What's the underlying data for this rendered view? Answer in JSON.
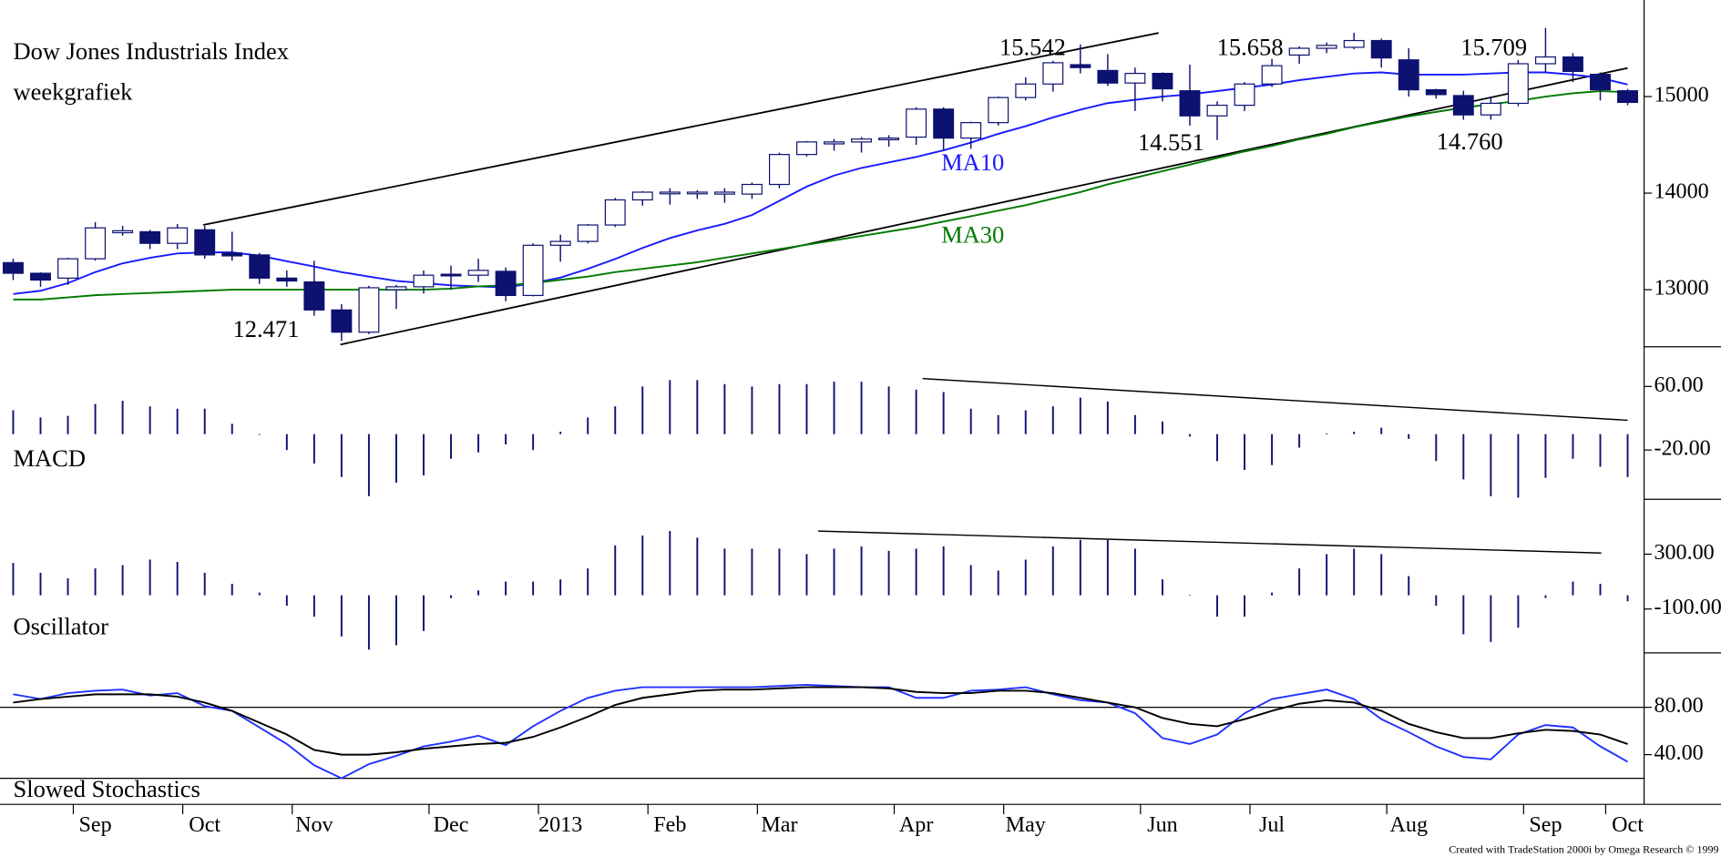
{
  "chart_data": [
    {
      "type": "candlestick",
      "title": "Dow Jones Industrials Index",
      "subtitle": "weekgrafiek",
      "up_color": "#ffffff",
      "down_color": "#0d1170",
      "open": [
        13280,
        13170,
        13120,
        13320,
        13590,
        13600,
        13480,
        13620,
        13380,
        13360,
        13120,
        13080,
        12790,
        12560,
        13000,
        13030,
        13160,
        13150,
        13190,
        12940,
        13460,
        13500,
        13670,
        13930,
        14000,
        14000,
        13990,
        13990,
        14090,
        14400,
        14510,
        14530,
        14560,
        14580,
        14870,
        14570,
        14730,
        14990,
        15130,
        15330,
        15270,
        15140,
        15240,
        15060,
        14800,
        14910,
        15130,
        15430,
        15500,
        15510,
        15580,
        15380,
        15070,
        15010,
        14810,
        14930,
        15340,
        15410,
        15230,
        15060
      ],
      "high": [
        13320,
        13180,
        13330,
        13700,
        13660,
        13620,
        13680,
        13660,
        13600,
        13380,
        13200,
        13300,
        12850,
        13040,
        13050,
        13200,
        13250,
        13320,
        13230,
        13480,
        13570,
        13680,
        13950,
        14020,
        14050,
        14030,
        14050,
        14110,
        14420,
        14540,
        14560,
        14580,
        14600,
        14890,
        14890,
        14740,
        15000,
        15200,
        15370,
        15540,
        15440,
        15300,
        15250,
        15330,
        14950,
        15150,
        15390,
        15520,
        15560,
        15660,
        15600,
        15500,
        15080,
        15060,
        15000,
        15380,
        15710,
        15450,
        15250,
        15080
      ],
      "low": [
        13100,
        13030,
        13050,
        13300,
        13560,
        13420,
        13420,
        13320,
        13300,
        13060,
        13030,
        12730,
        12470,
        12540,
        12800,
        12960,
        13000,
        13080,
        12880,
        12930,
        13290,
        13480,
        13650,
        13870,
        13880,
        13940,
        13900,
        13940,
        14050,
        14380,
        14440,
        14420,
        14480,
        14500,
        14450,
        14460,
        14700,
        14960,
        15050,
        15240,
        15110,
        14850,
        14950,
        14700,
        14550,
        14850,
        15100,
        15340,
        15450,
        15490,
        15300,
        15000,
        14980,
        14760,
        14760,
        14900,
        15250,
        15150,
        14960,
        14910
      ],
      "close": [
        13170,
        13100,
        13320,
        13640,
        13610,
        13480,
        13640,
        13360,
        13350,
        13120,
        13090,
        12790,
        12560,
        13020,
        13030,
        13150,
        13150,
        13200,
        12940,
        13460,
        13500,
        13670,
        13930,
        14010,
        14010,
        14010,
        14010,
        14090,
        14400,
        14530,
        14530,
        14560,
        14570,
        14870,
        14570,
        14730,
        14990,
        15130,
        15350,
        15300,
        15140,
        15240,
        15080,
        14800,
        14910,
        15130,
        15320,
        15500,
        15530,
        15580,
        15400,
        15070,
        15020,
        14810,
        14930,
        15340,
        15410,
        15260,
        15070,
        14940
      ],
      "series": [
        {
          "name": "MA10",
          "color": "#1a1aff",
          "values": [
            12955,
            12989,
            13068,
            13182,
            13273,
            13330,
            13375,
            13386,
            13386,
            13352,
            13295,
            13239,
            13182,
            13136,
            13091,
            13068,
            13045,
            13034,
            13023,
            13068,
            13125,
            13216,
            13318,
            13432,
            13534,
            13614,
            13682,
            13773,
            13920,
            14068,
            14182,
            14261,
            14318,
            14375,
            14443,
            14523,
            14614,
            14693,
            14784,
            14864,
            14932,
            14966,
            15000,
            15023,
            15057,
            15091,
            15125,
            15170,
            15205,
            15239,
            15250,
            15227,
            15227,
            15227,
            15239,
            15250,
            15250,
            15227,
            15193,
            15125
          ]
        },
        {
          "name": "MA30",
          "color": "#007a00",
          "values": [
            12898,
            12898,
            12920,
            12943,
            12955,
            12966,
            12977,
            12989,
            13000,
            13000,
            13000,
            13000,
            13000,
            13000,
            13000,
            13000,
            13011,
            13034,
            13045,
            13068,
            13102,
            13136,
            13182,
            13216,
            13250,
            13284,
            13330,
            13375,
            13420,
            13466,
            13511,
            13557,
            13602,
            13648,
            13705,
            13761,
            13818,
            13875,
            13943,
            14011,
            14091,
            14159,
            14227,
            14295,
            14364,
            14432,
            14489,
            14557,
            14614,
            14682,
            14739,
            14795,
            14841,
            14886,
            14920,
            14955,
            15000,
            15034,
            15057,
            15045
          ]
        }
      ],
      "annotations": [
        "15.542",
        "15.658",
        "15.709",
        "12.471",
        "14.551",
        "14.760"
      ],
      "ylim": [
        12409,
        16000
      ],
      "yticks": [
        13000,
        14000,
        15000
      ]
    },
    {
      "type": "bar",
      "title": "MACD",
      "color": "#0d1170",
      "values": [
        30,
        21,
        23,
        38,
        42,
        35,
        32,
        32,
        13,
        -1,
        -20,
        -37,
        -54,
        -78,
        -61,
        -52,
        -31,
        -23,
        -13,
        -20,
        3,
        21,
        35,
        60,
        68,
        68,
        63,
        60,
        63,
        63,
        66,
        66,
        60,
        56,
        53,
        32,
        24,
        30,
        35,
        46,
        41,
        24,
        16,
        -3,
        -34,
        -45,
        -39,
        -17,
        1,
        3,
        8,
        -6,
        -34,
        -57,
        -78,
        -80,
        -55,
        -31,
        -41,
        -54
      ],
      "ylim": [
        -82,
        110
      ],
      "yticks": [
        {
          "value": 60,
          "label": "60.00"
        },
        {
          "value": -20,
          "label": "-20.00"
        }
      ]
    },
    {
      "type": "bar",
      "title": "Oscillator",
      "color": "#0d1170",
      "values": [
        236,
        164,
        124,
        196,
        220,
        260,
        244,
        164,
        84,
        20,
        -76,
        -156,
        -300,
        -396,
        -364,
        -260,
        -20,
        36,
        100,
        100,
        116,
        196,
        364,
        436,
        468,
        420,
        340,
        340,
        340,
        300,
        340,
        356,
        324,
        340,
        356,
        220,
        180,
        260,
        356,
        404,
        404,
        340,
        116,
        4,
        -156,
        -156,
        20,
        196,
        300,
        340,
        300,
        140,
        -76,
        -284,
        -340,
        -236,
        -20,
        100,
        84,
        -44
      ],
      "ylim": [
        -420,
        700
      ],
      "yticks": [
        {
          "value": 300,
          "label": "300.00"
        },
        {
          "value": -100,
          "label": "-100.00"
        }
      ]
    },
    {
      "type": "line",
      "title": "Slowed Stochastics",
      "categories": [
        null,
        null,
        null,
        "Sep",
        null,
        null,
        null,
        "Oct",
        null,
        null,
        null,
        "Nov",
        null,
        null,
        null,
        null,
        "Dec",
        null,
        null,
        null,
        "2013",
        null,
        null,
        null,
        "Feb",
        null,
        null,
        null,
        "Mar",
        null,
        null,
        null,
        null,
        "Apr",
        null,
        null,
        null,
        "May",
        null,
        null,
        null,
        null,
        "Jun",
        null,
        null,
        null,
        "Jul",
        null,
        null,
        null,
        null,
        "Aug",
        null,
        null,
        null,
        null,
        "Sep",
        null,
        null,
        "Oct"
      ],
      "series": [
        {
          "color": "#2233ff",
          "values": [
            91,
            87,
            92,
            94,
            95,
            90,
            92,
            81,
            77,
            63,
            49,
            31,
            20,
            32,
            39,
            47,
            51,
            56,
            48,
            64,
            77,
            88,
            94,
            97,
            97,
            97,
            97,
            97,
            98,
            99,
            98,
            97,
            97,
            88,
            88,
            94,
            95,
            97,
            91,
            86,
            84,
            75,
            54,
            49,
            57,
            75,
            87,
            91,
            95,
            87,
            70,
            59,
            47,
            38,
            36,
            57,
            65,
            63,
            47,
            34
          ]
        },
        {
          "color": "#000000",
          "values": [
            84,
            87,
            89,
            91,
            91,
            91,
            89,
            84,
            77,
            67,
            57,
            44,
            40,
            40,
            42,
            45,
            47,
            49,
            50,
            55,
            63,
            72,
            82,
            88,
            91,
            94,
            95,
            95,
            96,
            97,
            97,
            97,
            96,
            93,
            92,
            92,
            94,
            94,
            92,
            88,
            84,
            80,
            71,
            66,
            64,
            70,
            77,
            83,
            86,
            84,
            77,
            66,
            59,
            54,
            54,
            58,
            61,
            60,
            57,
            49
          ]
        }
      ],
      "hlines": [
        80,
        20
      ],
      "ylim": [
        -2,
        126
      ],
      "yticks": [
        {
          "value": 80,
          "label": "80.00"
        },
        {
          "value": 40,
          "label": "40.00"
        }
      ]
    }
  ],
  "footer": "Created with TradeStation 2000i by Omega Research © 1999"
}
